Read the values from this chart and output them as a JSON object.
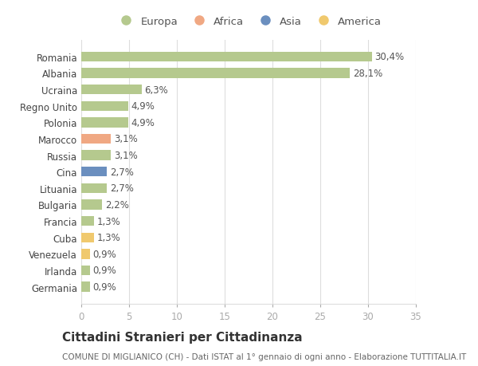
{
  "countries": [
    "Romania",
    "Albania",
    "Ucraina",
    "Regno Unito",
    "Polonia",
    "Marocco",
    "Russia",
    "Cina",
    "Lituania",
    "Bulgaria",
    "Francia",
    "Cuba",
    "Venezuela",
    "Irlanda",
    "Germania"
  ],
  "values": [
    30.4,
    28.1,
    6.3,
    4.9,
    4.9,
    3.1,
    3.1,
    2.7,
    2.7,
    2.2,
    1.3,
    1.3,
    0.9,
    0.9,
    0.9
  ],
  "labels": [
    "30,4%",
    "28,1%",
    "6,3%",
    "4,9%",
    "4,9%",
    "3,1%",
    "3,1%",
    "2,7%",
    "2,7%",
    "2,2%",
    "1,3%",
    "1,3%",
    "0,9%",
    "0,9%",
    "0,9%"
  ],
  "continents": [
    "Europa",
    "Europa",
    "Europa",
    "Europa",
    "Europa",
    "Africa",
    "Europa",
    "Asia",
    "Europa",
    "Europa",
    "Europa",
    "America",
    "America",
    "Europa",
    "Europa"
  ],
  "continent_colors": {
    "Europa": "#b5c98e",
    "Africa": "#f0a883",
    "Asia": "#6b8fbf",
    "America": "#f0c96e"
  },
  "legend_order": [
    "Europa",
    "Africa",
    "Asia",
    "America"
  ],
  "title": "Cittadini Stranieri per Cittadinanza",
  "subtitle": "COMUNE DI MIGLIANICO (CH) - Dati ISTAT al 1° gennaio di ogni anno - Elaborazione TUTTITALIA.IT",
  "xlim": [
    0,
    35
  ],
  "xticks": [
    0,
    5,
    10,
    15,
    20,
    25,
    30,
    35
  ],
  "bg_color": "#ffffff",
  "grid_color": "#dddddd",
  "bar_height": 0.6,
  "title_fontsize": 11,
  "subtitle_fontsize": 7.5,
  "label_fontsize": 8.5,
  "tick_fontsize": 8.5,
  "legend_fontsize": 9.5
}
